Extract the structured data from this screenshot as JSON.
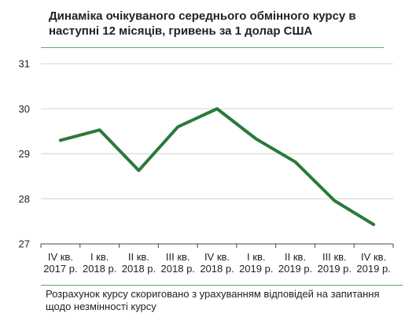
{
  "chart_data": {
    "type": "line",
    "title": "Динаміка очікуваного середнього обмінного курсу в наступні 12 місяців, гривень за 1 долар США",
    "categories": [
      [
        "IV кв.",
        "2017 р."
      ],
      [
        "I кв.",
        "2018 р."
      ],
      [
        "II кв.",
        "2018 р."
      ],
      [
        "III кв.",
        "2018 р."
      ],
      [
        "IV кв.",
        "2018 р."
      ],
      [
        "I кв.",
        "2019 р."
      ],
      [
        "II кв.",
        "2019 р."
      ],
      [
        "III кв.",
        "2019 р."
      ],
      [
        "IV кв.",
        "2019 р."
      ]
    ],
    "series": [
      {
        "values": [
          29.3,
          29.53,
          28.63,
          29.6,
          30.0,
          29.33,
          28.82,
          27.96,
          27.43
        ]
      }
    ],
    "ylim": [
      27,
      31
    ],
    "yticks": [
      "27",
      "28",
      "29",
      "30",
      "31"
    ],
    "grid": true,
    "line_color": "#2a7a3a",
    "grid_color": "#d4d4d4",
    "footnote": "Розрахунок курсу скориговано з урахуванням відповідей на запитання щодо незмінності курсу"
  }
}
